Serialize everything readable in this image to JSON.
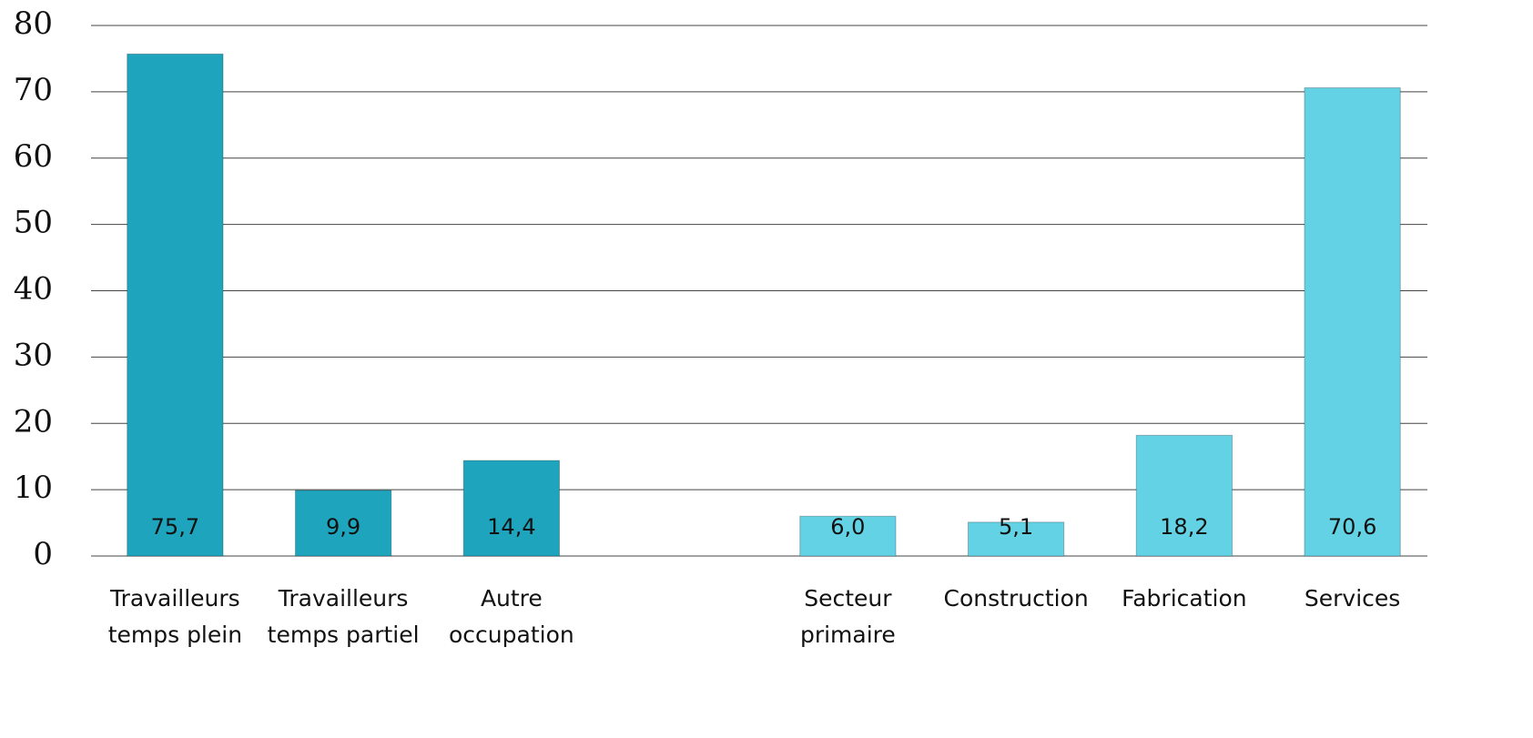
{
  "chart_data": {
    "type": "bar",
    "categories": [
      "Travailleurs temps plein",
      "Travailleurs temps partiel",
      "Autre occupation",
      null,
      "Secteur primaire",
      "Construction",
      "Fabrication",
      "Services"
    ],
    "values": [
      75.7,
      9.9,
      14.4,
      null,
      6.0,
      5.1,
      18.2,
      70.6
    ],
    "value_labels": [
      "75,7",
      "9,9",
      "14,4",
      null,
      "6,0",
      "5,1",
      "18,2",
      "70,6"
    ],
    "colors": [
      "#1ea5bd",
      "#1ea5bd",
      "#1ea5bd",
      null,
      "#63d2e4",
      "#63d2e4",
      "#63d2e4",
      "#63d2e4"
    ],
    "ylim": [
      0,
      80
    ],
    "yticks": [
      0,
      10,
      20,
      30,
      40,
      50,
      60,
      70,
      80
    ],
    "grid": true
  }
}
